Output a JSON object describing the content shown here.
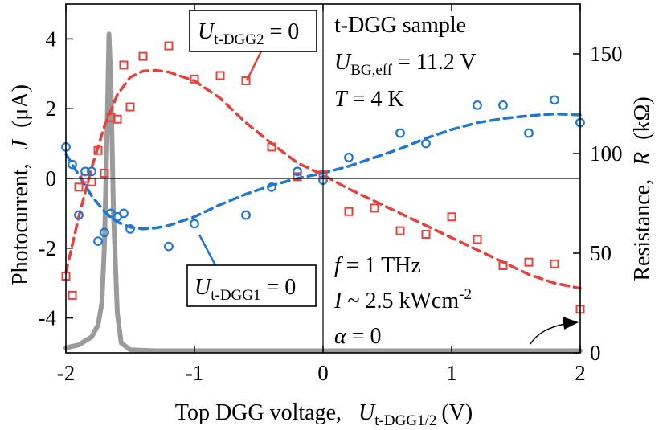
{
  "chart_data": {
    "type": "scatter",
    "x_axis": {
      "label": "Top DGG voltage,",
      "symbol": "U",
      "symbol_sub": "t-DGG1/2",
      "unit": "(V)",
      "range": [
        -2,
        2
      ],
      "ticks": [
        -2,
        -1,
        0,
        1,
        2
      ],
      "tick_labels": [
        "-2",
        "-1",
        "0",
        "1",
        "2"
      ]
    },
    "y_left": {
      "label": "Photocurrent,",
      "symbol": "J",
      "unit": "(μA)",
      "range": [
        -5,
        5
      ],
      "ticks": [
        -4,
        -2,
        0,
        2,
        4
      ],
      "tick_labels": [
        "-4",
        "-2",
        "0",
        "2",
        "4"
      ]
    },
    "y_right": {
      "label": "Resistance,",
      "symbol": "R",
      "unit": "(kΩ)",
      "range": [
        0,
        175
      ],
      "ticks": [
        0,
        50,
        100,
        150
      ],
      "tick_labels": [
        "0",
        "50",
        "100",
        "150"
      ]
    },
    "annotations": {
      "sample": "t-DGG sample",
      "ubg_symbol": "U",
      "ubg_sub": "BG,eff",
      "ubg_value": " = 11.2 V",
      "temp_symbol": "T",
      "temp_value": " = 4 K",
      "freq_symbol": "f",
      "freq_value": " = 1 THz",
      "int_symbol": "I",
      "int_value": " ~ 2.5 kWcm",
      "int_exp": "-2",
      "alpha_symbol": "α",
      "alpha_value": " = 0"
    },
    "label_boxes": [
      {
        "symbol": "U",
        "sub": "t-DGG2",
        "value": " = 0",
        "color": "#e8413c"
      },
      {
        "symbol": "U",
        "sub": "t-DGG1",
        "value": " = 0",
        "color": "#1f77d4"
      }
    ],
    "series": [
      {
        "key": "dgg2",
        "marker": "square",
        "color": "#e8413c",
        "points": [
          [
            -2.0,
            -2.8
          ],
          [
            -1.95,
            -3.35
          ],
          [
            -1.9,
            -0.25
          ],
          [
            -1.85,
            0.0
          ],
          [
            -1.8,
            -0.1
          ],
          [
            -1.75,
            0.8
          ],
          [
            -1.7,
            0.15
          ],
          [
            -1.65,
            1.75
          ],
          [
            -1.6,
            1.7
          ],
          [
            -1.55,
            3.25
          ],
          [
            -1.5,
            2.05
          ],
          [
            -1.4,
            3.5
          ],
          [
            -1.2,
            3.8
          ],
          [
            -1.0,
            2.85
          ],
          [
            -0.8,
            2.95
          ],
          [
            -0.6,
            2.8
          ],
          [
            -0.4,
            0.9
          ],
          [
            -0.2,
            0.05
          ],
          [
            0.0,
            0.1
          ],
          [
            0.2,
            -0.95
          ],
          [
            0.4,
            -0.85
          ],
          [
            0.6,
            -1.5
          ],
          [
            0.8,
            -1.6
          ],
          [
            1.0,
            -1.1
          ],
          [
            1.2,
            -1.75
          ],
          [
            1.4,
            -2.5
          ],
          [
            1.6,
            -2.4
          ],
          [
            1.8,
            -2.45
          ],
          [
            2.0,
            -3.75
          ]
        ],
        "fit": [
          [
            -2.0,
            -2.7
          ],
          [
            -1.9,
            -1.1
          ],
          [
            -1.8,
            0.3
          ],
          [
            -1.7,
            1.5
          ],
          [
            -1.6,
            2.4
          ],
          [
            -1.5,
            2.9
          ],
          [
            -1.4,
            3.08
          ],
          [
            -1.3,
            3.1
          ],
          [
            -1.2,
            3.05
          ],
          [
            -1.0,
            2.8
          ],
          [
            -0.8,
            2.3
          ],
          [
            -0.6,
            1.6
          ],
          [
            -0.4,
            1.0
          ],
          [
            -0.2,
            0.45
          ],
          [
            0.0,
            0.1
          ],
          [
            0.2,
            -0.3
          ],
          [
            0.4,
            -0.65
          ],
          [
            0.6,
            -1.0
          ],
          [
            0.8,
            -1.35
          ],
          [
            1.0,
            -1.7
          ],
          [
            1.2,
            -2.05
          ],
          [
            1.4,
            -2.4
          ],
          [
            1.6,
            -2.75
          ],
          [
            1.8,
            -3.0
          ],
          [
            2.0,
            -3.15
          ]
        ]
      },
      {
        "key": "dgg1",
        "marker": "circle",
        "color": "#1f77d4",
        "points": [
          [
            -2.0,
            0.9
          ],
          [
            -1.95,
            0.4
          ],
          [
            -1.9,
            -1.05
          ],
          [
            -1.85,
            0.2
          ],
          [
            -1.8,
            0.2
          ],
          [
            -1.75,
            -1.8
          ],
          [
            -1.7,
            -1.55
          ],
          [
            -1.65,
            -1.0
          ],
          [
            -1.6,
            -1.1
          ],
          [
            -1.55,
            -1.0
          ],
          [
            -1.5,
            -1.45
          ],
          [
            -1.2,
            -1.95
          ],
          [
            -1.0,
            -1.3
          ],
          [
            -0.6,
            -1.05
          ],
          [
            -0.4,
            -0.25
          ],
          [
            -0.2,
            0.2
          ],
          [
            0.0,
            -0.05
          ],
          [
            0.2,
            0.6
          ],
          [
            0.6,
            1.3
          ],
          [
            0.8,
            1.0
          ],
          [
            1.2,
            2.1
          ],
          [
            1.4,
            2.1
          ],
          [
            1.6,
            1.3
          ],
          [
            1.8,
            2.25
          ],
          [
            2.0,
            1.6
          ]
        ],
        "fit": [
          [
            -2.0,
            0.7
          ],
          [
            -1.9,
            0.1
          ],
          [
            -1.8,
            -0.5
          ],
          [
            -1.7,
            -0.95
          ],
          [
            -1.6,
            -1.25
          ],
          [
            -1.5,
            -1.4
          ],
          [
            -1.4,
            -1.45
          ],
          [
            -1.3,
            -1.42
          ],
          [
            -1.2,
            -1.35
          ],
          [
            -1.0,
            -1.1
          ],
          [
            -0.8,
            -0.75
          ],
          [
            -0.6,
            -0.45
          ],
          [
            -0.4,
            -0.2
          ],
          [
            -0.2,
            0.0
          ],
          [
            0.0,
            0.15
          ],
          [
            0.2,
            0.35
          ],
          [
            0.4,
            0.6
          ],
          [
            0.6,
            0.85
          ],
          [
            0.8,
            1.15
          ],
          [
            1.0,
            1.4
          ],
          [
            1.2,
            1.6
          ],
          [
            1.4,
            1.72
          ],
          [
            1.6,
            1.8
          ],
          [
            1.8,
            1.85
          ],
          [
            2.0,
            1.82
          ]
        ]
      },
      {
        "key": "resistance",
        "marker": "line",
        "axis": "right",
        "color": "#9b9b9b",
        "points": [
          [
            -2.0,
            2.5
          ],
          [
            -1.9,
            4
          ],
          [
            -1.8,
            8
          ],
          [
            -1.75,
            14
          ],
          [
            -1.72,
            25
          ],
          [
            -1.7,
            55
          ],
          [
            -1.68,
            110
          ],
          [
            -1.665,
            160
          ],
          [
            -1.65,
            135
          ],
          [
            -1.63,
            70
          ],
          [
            -1.6,
            20
          ],
          [
            -1.57,
            5
          ],
          [
            -1.5,
            1.5
          ],
          [
            -1.3,
            1
          ],
          [
            0.0,
            1
          ],
          [
            1.0,
            1
          ],
          [
            2.0,
            1
          ]
        ]
      }
    ]
  }
}
